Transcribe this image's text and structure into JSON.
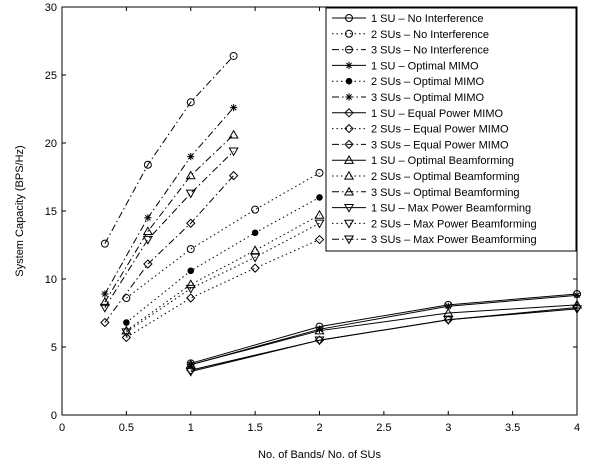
{
  "chart_data": {
    "type": "line",
    "xlabel": "No. of Bands/ No. of SUs",
    "ylabel": "System Capacity (BPS/Hz)",
    "xlim": [
      0,
      4
    ],
    "ylim": [
      0,
      30
    ],
    "xticks": [
      "0",
      "0.5",
      "1",
      "1.5",
      "2",
      "2.5",
      "3",
      "3.5",
      "4"
    ],
    "yticks": [
      "0",
      "5",
      "10",
      "15",
      "20",
      "25",
      "30"
    ],
    "grid": false,
    "legend_position": "top-right",
    "series": [
      {
        "name": "1 SU – No Interference",
        "marker": "circle",
        "filled": false,
        "style": "solid",
        "x": [
          1,
          2,
          3,
          4
        ],
        "y": [
          3.8,
          6.5,
          8.1,
          8.9
        ]
      },
      {
        "name": "2 SUs – No Interference",
        "marker": "circle",
        "filled": false,
        "style": "dotted",
        "x": [
          0.5,
          1,
          1.5,
          2
        ],
        "y": [
          8.6,
          12.2,
          15.1,
          17.8
        ]
      },
      {
        "name": "3 SUs – No Interference",
        "marker": "circle",
        "filled": false,
        "style": "dashdot",
        "x": [
          0.333,
          0.667,
          1,
          1.333
        ],
        "y": [
          12.6,
          18.4,
          23.0,
          26.4
        ]
      },
      {
        "name": "1 SU – Optimal MIMO",
        "marker": "star",
        "filled": false,
        "style": "solid",
        "x": [
          1,
          2,
          3,
          4
        ],
        "y": [
          3.7,
          6.3,
          8.0,
          8.8
        ]
      },
      {
        "name": "2 SUs – Optimal MIMO",
        "marker": "dot",
        "filled": true,
        "style": "dotted",
        "x": [
          0.5,
          1,
          1.5,
          2
        ],
        "y": [
          6.8,
          10.6,
          13.4,
          16.0
        ]
      },
      {
        "name": "3 SUs – Optimal MIMO",
        "marker": "star",
        "filled": false,
        "style": "dashdot",
        "x": [
          0.333,
          0.667,
          1,
          1.333
        ],
        "y": [
          8.9,
          14.5,
          19.0,
          22.6
        ]
      },
      {
        "name": "1 SU – Equal Power MIMO",
        "marker": "diamond",
        "filled": false,
        "style": "solid",
        "x": [
          1,
          2,
          3,
          4
        ],
        "y": [
          3.3,
          5.5,
          7.0,
          7.9
        ]
      },
      {
        "name": "2 SUs – Equal Power MIMO",
        "marker": "diamond",
        "filled": false,
        "style": "dotted",
        "x": [
          0.5,
          1,
          1.5,
          2
        ],
        "y": [
          5.7,
          8.6,
          10.8,
          12.9
        ]
      },
      {
        "name": "3 SUs – Equal Power MIMO",
        "marker": "diamond",
        "filled": false,
        "style": "dashdot",
        "x": [
          0.333,
          0.667,
          1,
          1.333
        ],
        "y": [
          6.8,
          11.1,
          14.1,
          17.6
        ]
      },
      {
        "name": "1 SU – Optimal Beamforming",
        "marker": "triangle-up",
        "filled": false,
        "style": "solid",
        "x": [
          1,
          2,
          3,
          4
        ],
        "y": [
          3.7,
          6.2,
          7.5,
          8.1
        ]
      },
      {
        "name": "2 SUs – Optimal Beamforming",
        "marker": "triangle-up",
        "filled": false,
        "style": "dotted",
        "x": [
          0.5,
          1,
          1.5,
          2
        ],
        "y": [
          6.2,
          9.6,
          12.1,
          14.7
        ]
      },
      {
        "name": "3 SUs – Optimal Beamforming",
        "marker": "triangle-up",
        "filled": false,
        "style": "dashdot",
        "x": [
          0.333,
          0.667,
          1,
          1.333
        ],
        "y": [
          8.3,
          13.5,
          17.6,
          20.6
        ]
      },
      {
        "name": "1 SU – Max Power Beamforming",
        "marker": "triangle-down",
        "filled": false,
        "style": "solid",
        "x": [
          1,
          2,
          3,
          4
        ],
        "y": [
          3.2,
          5.5,
          7.0,
          7.8
        ]
      },
      {
        "name": "2 SUs – Max Power Beamforming",
        "marker": "triangle-down",
        "filled": false,
        "style": "dotted",
        "x": [
          0.5,
          1,
          1.5,
          2
        ],
        "y": [
          6.1,
          9.3,
          11.6,
          14.1
        ]
      },
      {
        "name": "3 SUs – Max Power Beamforming",
        "marker": "triangle-down",
        "filled": false,
        "style": "dashdot",
        "x": [
          0.333,
          0.667,
          1,
          1.333
        ],
        "y": [
          7.9,
          12.9,
          16.3,
          19.4
        ]
      }
    ]
  }
}
